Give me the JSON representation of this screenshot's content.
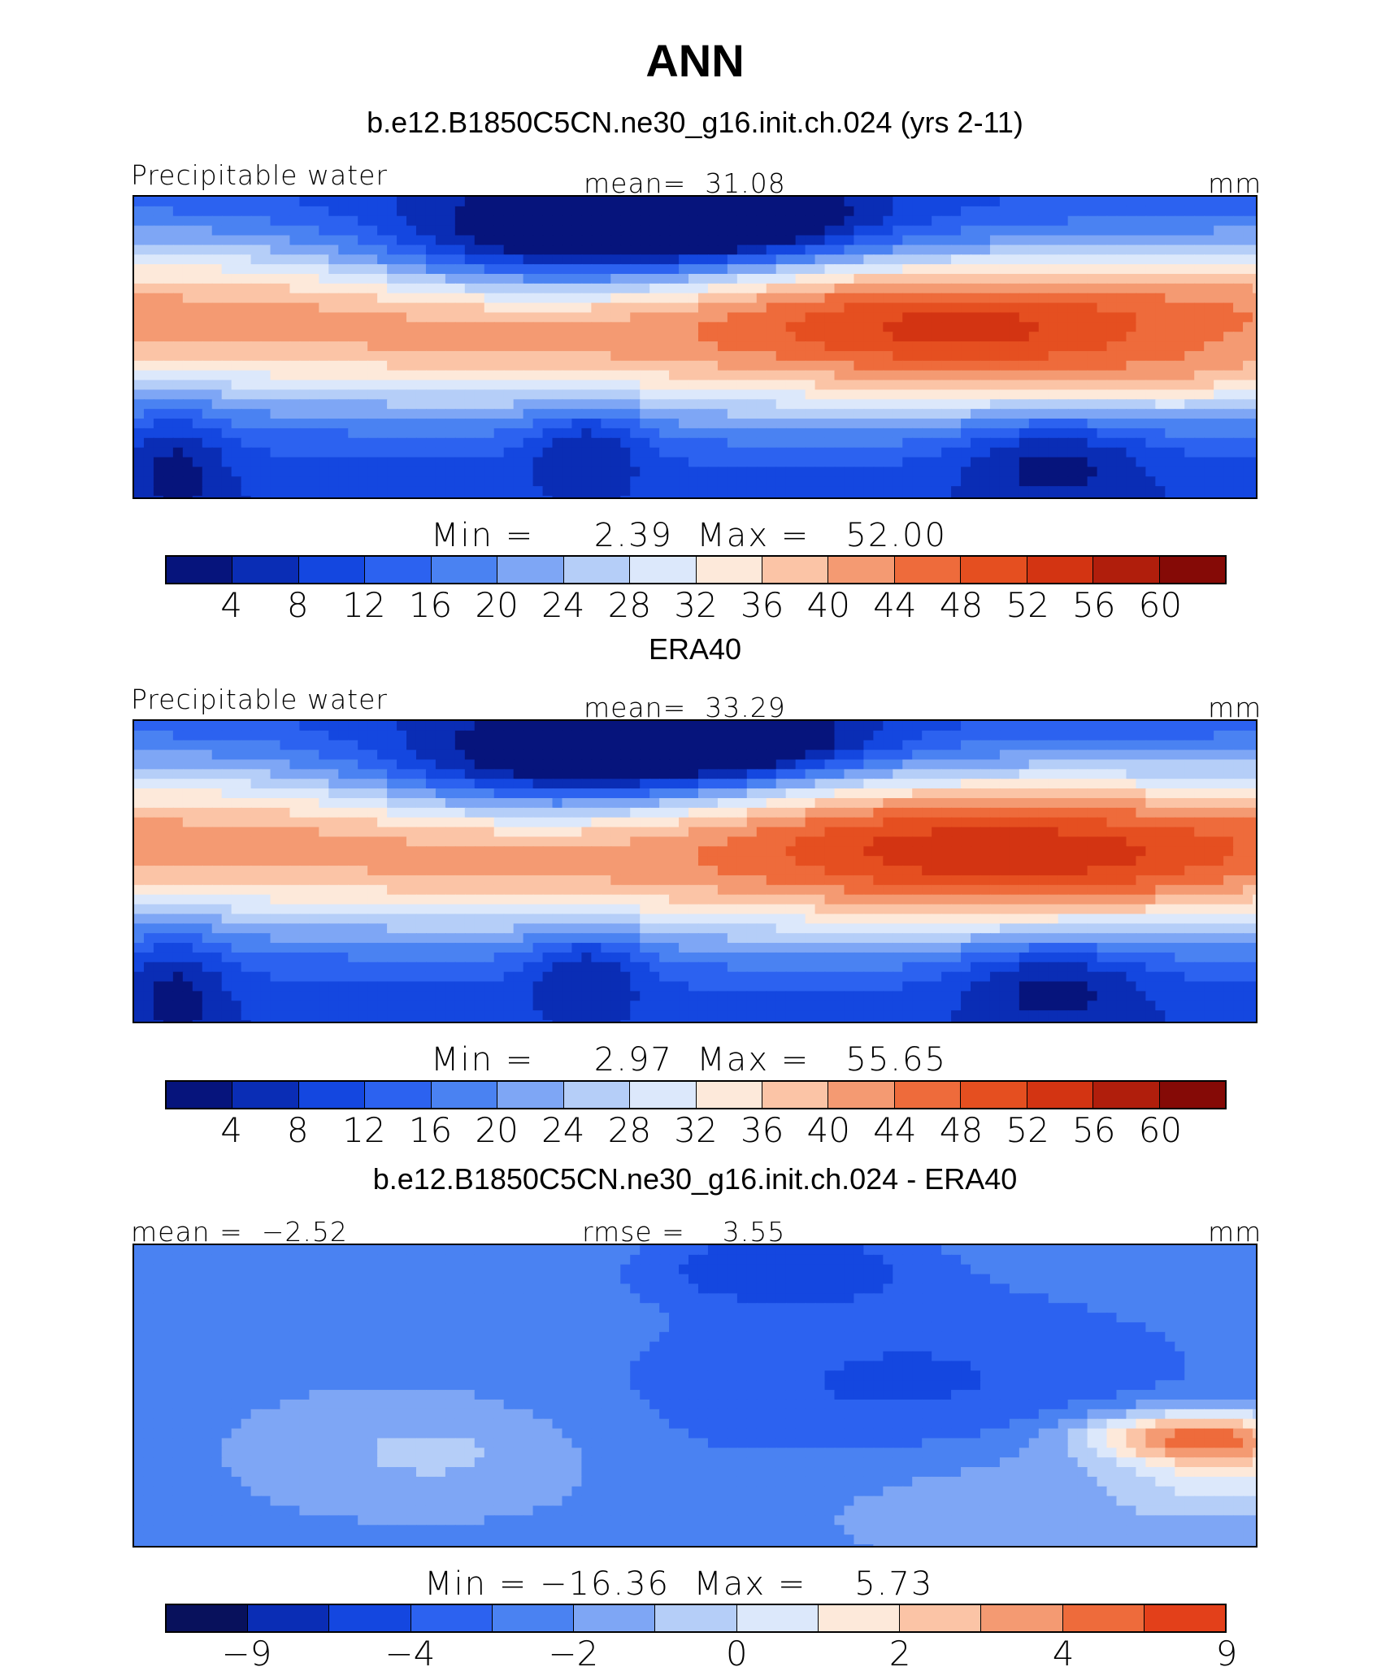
{
  "header": {
    "season": "ANN"
  },
  "colors": {
    "palette13": [
      "#08115c",
      "#0a2db5",
      "#1447e0",
      "#2c62f0",
      "#4a82f2",
      "#7ea6f5",
      "#b5cef8",
      "#dce8fb",
      "#fde9da",
      "#fbc4a6",
      "#f49a72",
      "#ee6b3b",
      "#e3401a"
    ],
    "palette16": [
      "#06147c",
      "#0a2db5",
      "#1447e0",
      "#2c62f0",
      "#4a82f2",
      "#7ea6f5",
      "#b5cef8",
      "#dce8fb",
      "#fde9da",
      "#fbc4a6",
      "#f49a72",
      "#ee6b3b",
      "#e54f20",
      "#d33412",
      "#b01e0c",
      "#850a06"
    ]
  },
  "chart_data": [
    {
      "type": "heatmap",
      "title": "b.e12.B1850C5CN.ne30_g16.init.ch.024 (yrs 2-11)",
      "variable": "Precipitable water",
      "mean_label": "mean=",
      "mean_value": "31.08",
      "units": "mm",
      "min_label": "Min =",
      "min_value": "2.39",
      "max_label": "Max =",
      "max_value": "52.00",
      "colorbar_ticks": [
        "4",
        "8",
        "12",
        "16",
        "20",
        "24",
        "28",
        "32",
        "36",
        "40",
        "44",
        "48",
        "52",
        "56",
        "60"
      ],
      "lon_range": [
        -80,
        180
      ],
      "lat_range": [
        -40,
        40
      ],
      "field": "model_pw"
    },
    {
      "type": "heatmap",
      "title": "ERA40",
      "variable": "Precipitable water",
      "mean_label": "mean=",
      "mean_value": "33.29",
      "units": "mm",
      "min_label": "Min =",
      "min_value": "2.97",
      "max_label": "Max =",
      "max_value": "55.65",
      "colorbar_ticks": [
        "4",
        "8",
        "12",
        "16",
        "20",
        "24",
        "28",
        "32",
        "36",
        "40",
        "44",
        "48",
        "52",
        "56",
        "60"
      ],
      "lon_range": [
        -80,
        180
      ],
      "lat_range": [
        -40,
        40
      ],
      "field": "obs_pw"
    },
    {
      "type": "heatmap",
      "title": "b.e12.B1850C5CN.ne30_g16.init.ch.024 - ERA40",
      "mean_label": "mean =",
      "mean_value": "−2.52",
      "rmse_label": "rmse =",
      "rmse_value": "3.55",
      "units": "mm",
      "min_label": "Min =",
      "min_value": "−16.36",
      "max_label": "Max =",
      "max_value": "5.73",
      "colorbar_ticks": [
        "−9",
        "−4",
        "−2",
        "0",
        "2",
        "4",
        "9"
      ],
      "colorbar_tick_boundaries": [
        1,
        3,
        5,
        7,
        9,
        11,
        13
      ],
      "lon_range": [
        -80,
        180
      ],
      "lat_range": [
        -40,
        40
      ],
      "field": "difference"
    }
  ]
}
